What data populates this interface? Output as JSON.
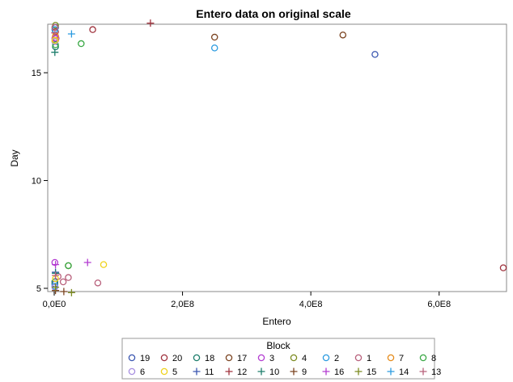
{
  "chart_data": {
    "type": "scatter",
    "title": "Entero data on original scale",
    "xlabel": "Entero",
    "ylabel": "Day",
    "xlim": [
      0,
      700000000
    ],
    "ylim": [
      4.85,
      17.25
    ],
    "x_ticks": [
      {
        "value": 0,
        "label": "0,0E0"
      },
      {
        "value": 200000000,
        "label": "2,0E8"
      },
      {
        "value": 400000000,
        "label": "4,0E8"
      },
      {
        "value": 600000000,
        "label": "6,0E8"
      }
    ],
    "y_ticks": [
      {
        "value": 5,
        "label": "5"
      },
      {
        "value": 10,
        "label": "10"
      },
      {
        "value": 15,
        "label": "15"
      }
    ],
    "grid": false,
    "legend": {
      "title": "Block",
      "placement": "bottom",
      "entries": [
        {
          "label": "19",
          "marker": "circle",
          "color": "#3a56b0"
        },
        {
          "label": "20",
          "marker": "circle",
          "color": "#a0333e"
        },
        {
          "label": "18",
          "marker": "circle",
          "color": "#1c7d6b"
        },
        {
          "label": "17",
          "marker": "circle",
          "color": "#7b4320"
        },
        {
          "label": "3",
          "marker": "circle",
          "color": "#b33cd1"
        },
        {
          "label": "4",
          "marker": "circle",
          "color": "#7c8b21"
        },
        {
          "label": "2",
          "marker": "circle",
          "color": "#2b9be0"
        },
        {
          "label": "1",
          "marker": "circle",
          "color": "#b8607b"
        },
        {
          "label": "7",
          "marker": "circle",
          "color": "#e58b1a"
        },
        {
          "label": "8",
          "marker": "circle",
          "color": "#3aa845"
        },
        {
          "label": "6",
          "marker": "circle",
          "color": "#a78ee0"
        },
        {
          "label": "5",
          "marker": "circle",
          "color": "#efd21c"
        },
        {
          "label": "11",
          "marker": "plus",
          "color": "#3a56b0"
        },
        {
          "label": "12",
          "marker": "plus",
          "color": "#a0333e"
        },
        {
          "label": "10",
          "marker": "plus",
          "color": "#1c7d6b"
        },
        {
          "label": "9",
          "marker": "plus",
          "color": "#7b4320"
        },
        {
          "label": "16",
          "marker": "plus",
          "color": "#b33cd1"
        },
        {
          "label": "15",
          "marker": "plus",
          "color": "#7c8b21"
        },
        {
          "label": "14",
          "marker": "plus",
          "color": "#2b9be0"
        },
        {
          "label": "13",
          "marker": "plus",
          "color": "#b8607b"
        }
      ]
    },
    "series": [
      {
        "name": "19",
        "marker": "circle",
        "color": "#3a56b0",
        "points": [
          [
            500000000,
            15.85
          ],
          [
            2000000,
            17.1
          ],
          [
            1000000,
            5.2
          ]
        ]
      },
      {
        "name": "20",
        "marker": "circle",
        "color": "#a0333e",
        "points": [
          [
            60000000,
            17.0
          ],
          [
            700000000,
            5.95
          ],
          [
            2000000,
            16.9
          ]
        ]
      },
      {
        "name": "18",
        "marker": "circle",
        "color": "#1c7d6b",
        "points": [
          [
            2000000,
            16.2
          ],
          [
            1000000,
            5.3
          ]
        ]
      },
      {
        "name": "17",
        "marker": "circle",
        "color": "#7b4320",
        "points": [
          [
            450000000,
            16.75
          ],
          [
            250000000,
            16.65
          ]
        ]
      },
      {
        "name": "3",
        "marker": "circle",
        "color": "#b33cd1",
        "points": [
          [
            1000000,
            6.2
          ],
          [
            3000000,
            16.6
          ],
          [
            1000000,
            16.6
          ]
        ]
      },
      {
        "name": "4",
        "marker": "circle",
        "color": "#7c8b21",
        "points": [
          [
            22000000,
            6.05
          ],
          [
            2000000,
            17.2
          ]
        ]
      },
      {
        "name": "2",
        "marker": "circle",
        "color": "#2b9be0",
        "points": [
          [
            250000000,
            16.15
          ],
          [
            1000000,
            17.0
          ],
          [
            1000000,
            5.1
          ]
        ]
      },
      {
        "name": "1",
        "marker": "circle",
        "color": "#b8607b",
        "points": [
          [
            68000000,
            5.25
          ],
          [
            22000000,
            5.5
          ],
          [
            14000000,
            5.3
          ],
          [
            6000000,
            5.55
          ],
          [
            1000000,
            17.1
          ]
        ]
      },
      {
        "name": "7",
        "marker": "circle",
        "color": "#e58b1a",
        "points": [
          [
            2000000,
            16.7
          ],
          [
            2000000,
            16.5
          ]
        ]
      },
      {
        "name": "8",
        "marker": "circle",
        "color": "#3aa845",
        "points": [
          [
            42000000,
            16.35
          ],
          [
            22000000,
            6.05
          ],
          [
            2000000,
            16.3
          ]
        ]
      },
      {
        "name": "6",
        "marker": "circle",
        "color": "#a78ee0",
        "points": [
          [
            1000000,
            16.45
          ],
          [
            1000000,
            5.05
          ]
        ]
      },
      {
        "name": "5",
        "marker": "circle",
        "color": "#efd21c",
        "points": [
          [
            77000000,
            6.1
          ],
          [
            2000000,
            5.45
          ],
          [
            1000000,
            16.5
          ]
        ]
      },
      {
        "name": "11",
        "marker": "plus",
        "color": "#3a56b0",
        "points": [
          [
            2000000,
            5.75
          ]
        ]
      },
      {
        "name": "12",
        "marker": "plus",
        "color": "#a0333e",
        "points": [
          [
            150000000,
            17.3
          ]
        ]
      },
      {
        "name": "10",
        "marker": "plus",
        "color": "#1c7d6b",
        "points": [
          [
            1000000,
            15.95
          ],
          [
            2000000,
            5.7
          ]
        ]
      },
      {
        "name": "9",
        "marker": "plus",
        "color": "#7b4320",
        "points": [
          [
            15000000,
            4.85
          ],
          [
            2000000,
            4.9
          ]
        ]
      },
      {
        "name": "16",
        "marker": "plus",
        "color": "#b33cd1",
        "points": [
          [
            52000000,
            6.2
          ],
          [
            2000000,
            6.1
          ]
        ]
      },
      {
        "name": "15",
        "marker": "plus",
        "color": "#7c8b21",
        "points": [
          [
            27000000,
            4.8
          ],
          [
            2000000,
            5.05
          ]
        ]
      },
      {
        "name": "14",
        "marker": "plus",
        "color": "#2b9be0",
        "points": [
          [
            27000000,
            16.8
          ]
        ]
      },
      {
        "name": "13",
        "marker": "plus",
        "color": "#b8607b",
        "points": [
          [
            1000000,
            16.85
          ],
          [
            2000000,
            5.6
          ]
        ]
      }
    ]
  }
}
